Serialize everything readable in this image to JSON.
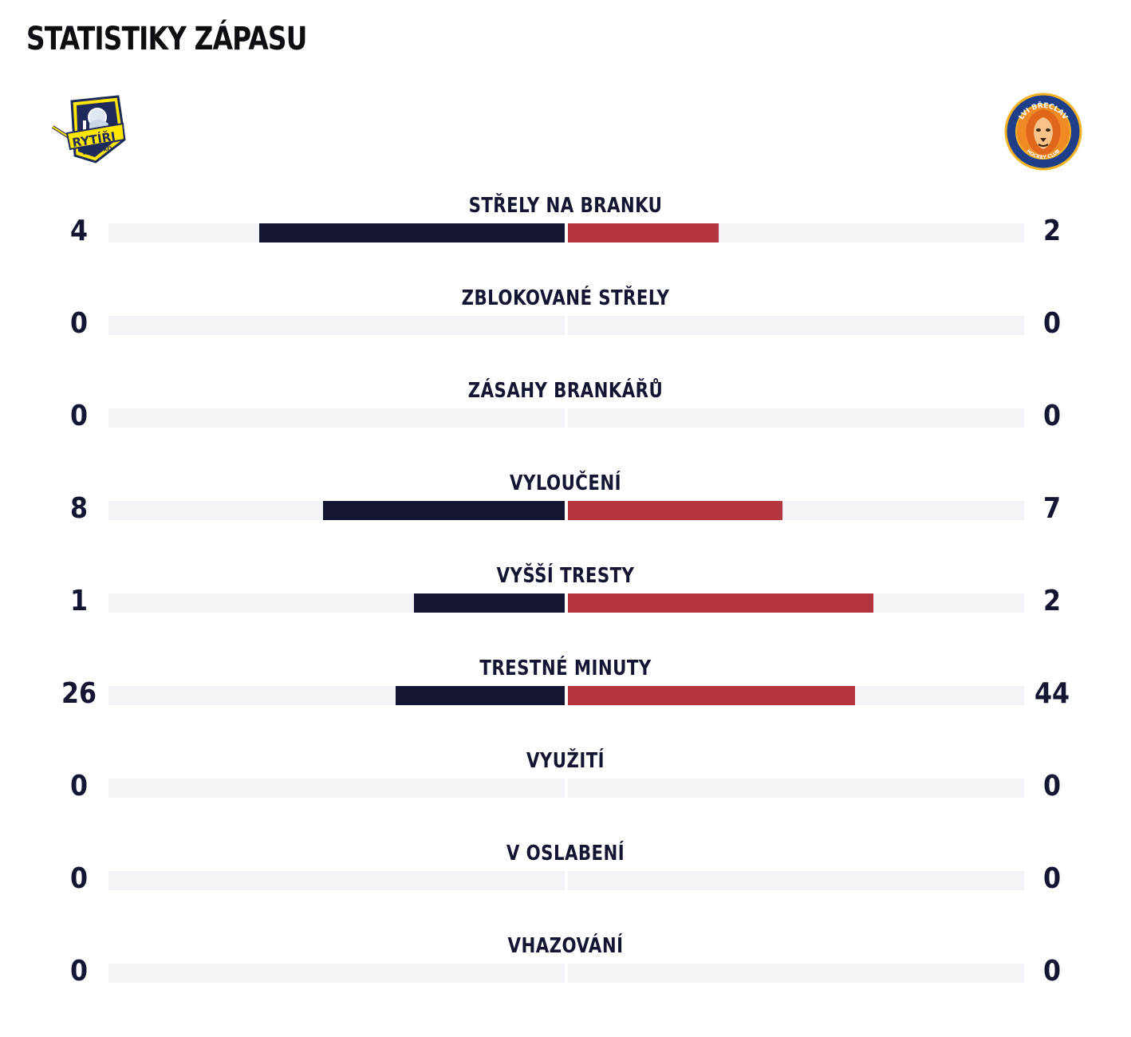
{
  "title": "STATISTIKY ZÁPASU",
  "teams": {
    "home": {
      "logo_icon": "rytiri-blansko-logo",
      "logo_text": "RYTÍŘI",
      "logo_subtext": "BLANSKO",
      "color": "#141533"
    },
    "away": {
      "logo_icon": "lvi-breclav-logo",
      "logo_text": "LVI BŘECLAV",
      "logo_subtext": "HOCKEY CLUB",
      "color": "#b5353f"
    }
  },
  "stats": [
    {
      "label": "STŘELY NA BRANKU",
      "home": "4",
      "away": "2",
      "home_share": 0.67,
      "away_share": 0.33
    },
    {
      "label": "ZBLOKOVANÉ STŘELY",
      "home": "0",
      "away": "0",
      "home_share": 0,
      "away_share": 0
    },
    {
      "label": "ZÁSAHY BRANKÁŘŮ",
      "home": "0",
      "away": "0",
      "home_share": 0,
      "away_share": 0
    },
    {
      "label": "VYLOUČENÍ",
      "home": "8",
      "away": "7",
      "home_share": 0.53,
      "away_share": 0.47
    },
    {
      "label": "VYŠŠÍ TRESTY",
      "home": "1",
      "away": "2",
      "home_share": 0.33,
      "away_share": 0.67
    },
    {
      "label": "TRESTNÉ MINUTY",
      "home": "26",
      "away": "44",
      "home_share": 0.37,
      "away_share": 0.63
    },
    {
      "label": "VYUŽITÍ",
      "home": "0",
      "away": "0",
      "home_share": 0,
      "away_share": 0
    },
    {
      "label": "V OSLABENÍ",
      "home": "0",
      "away": "0",
      "home_share": 0,
      "away_share": 0
    },
    {
      "label": "VHAZOVÁNÍ",
      "home": "0",
      "away": "0",
      "home_share": 0,
      "away_share": 0
    }
  ]
}
